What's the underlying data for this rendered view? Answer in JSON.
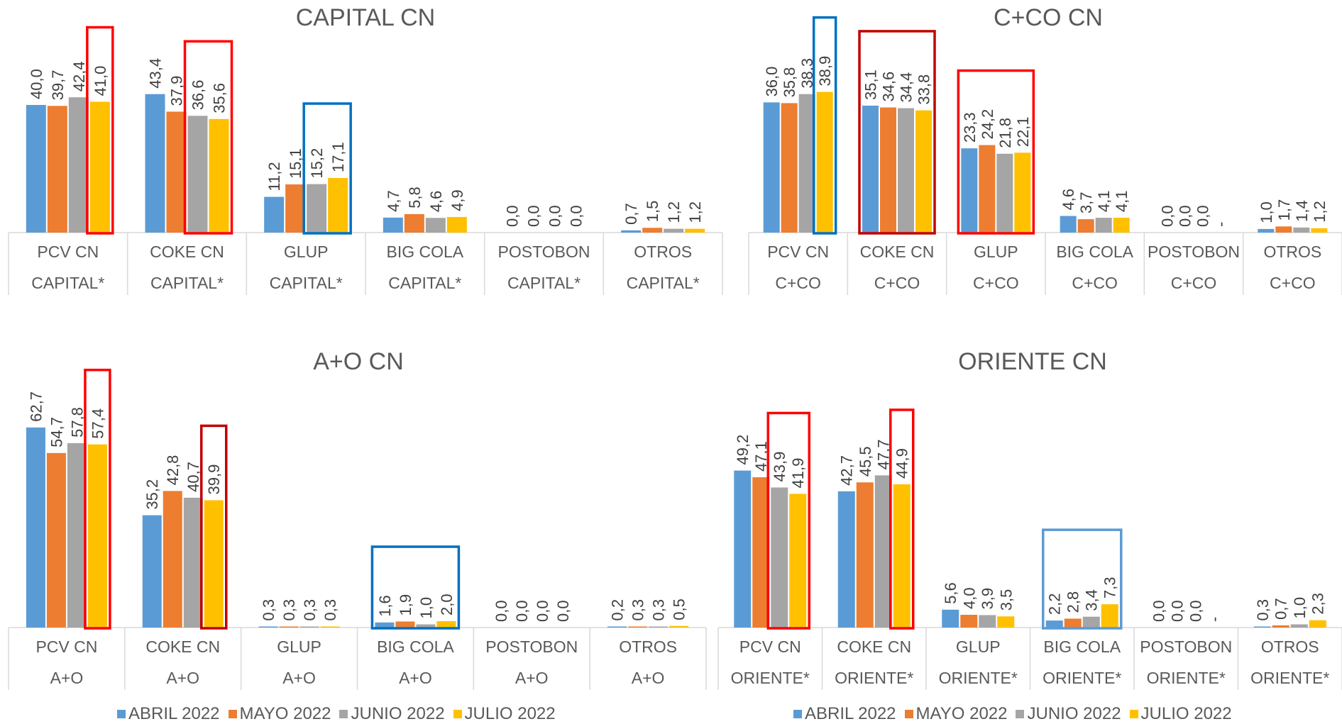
{
  "series_names": [
    "ABRIL 2022",
    "MAYO 2022",
    "JUNIO 2022",
    "JULIO 2022"
  ],
  "series_colors": [
    "#5B9BD5",
    "#ED7D31",
    "#A5A5A5",
    "#FFC000"
  ],
  "highlight_colors": {
    "red": "#FF0000",
    "dark-red": "#C00000",
    "blue": "#0070C0",
    "light-blue": "#5B9BD5"
  },
  "chart_data": [
    {
      "type": "bar",
      "title": "CAPITAL CN",
      "categories": [
        "PCV CN",
        "COKE CN",
        "GLUP",
        "BIG COLA",
        "POSTOBON",
        "OTROS"
      ],
      "subcategories": [
        "CAPITAL*",
        "CAPITAL*",
        "CAPITAL*",
        "CAPITAL*",
        "CAPITAL*",
        "CAPITAL*"
      ],
      "series": [
        {
          "name": "ABRIL 2022",
          "values": [
            40.0,
            43.4,
            11.2,
            4.7,
            0.0,
            0.7
          ],
          "labels": [
            "40,0",
            "43,4",
            "11,2",
            "4,7",
            "0,0",
            "0,7"
          ]
        },
        {
          "name": "MAYO 2022",
          "values": [
            39.7,
            37.9,
            15.1,
            5.8,
            0.0,
            1.5
          ],
          "labels": [
            "39,7",
            "37,9",
            "15,1",
            "5,8",
            "0,0",
            "1,5"
          ]
        },
        {
          "name": "JUNIO 2022",
          "values": [
            42.4,
            36.6,
            15.2,
            4.6,
            0.0,
            1.2
          ],
          "labels": [
            "42,4",
            "36,6",
            "15,2",
            "4,6",
            "0,0",
            "1,2"
          ]
        },
        {
          "name": "JULIO 2022",
          "values": [
            41.0,
            35.6,
            17.1,
            4.9,
            0.0,
            1.2
          ],
          "labels": [
            "41,0",
            "35,6",
            "17,1",
            "4,9",
            "0,0",
            "1,2"
          ]
        }
      ],
      "highlights": [
        {
          "from": 0,
          "to": 0,
          "series_from": 3,
          "series_to": 3,
          "color": "red"
        },
        {
          "from": 1,
          "to": 1,
          "series_from": 2,
          "series_to": 3,
          "color": "red"
        },
        {
          "from": 2,
          "to": 2,
          "series_from": 2,
          "series_to": 3,
          "color": "blue"
        }
      ]
    },
    {
      "type": "bar",
      "title": "C+CO CN",
      "categories": [
        "PCV CN",
        "COKE CN",
        "GLUP",
        "BIG COLA",
        "POSTOBON",
        "OTROS"
      ],
      "subcategories": [
        "C+CO",
        "C+CO",
        "C+CO",
        "C+CO",
        "C+CO",
        "C+CO"
      ],
      "series": [
        {
          "name": "ABRIL 2022",
          "values": [
            36.0,
            35.1,
            23.3,
            4.6,
            0.0,
            1.0
          ],
          "labels": [
            "36,0",
            "35,1",
            "23,3",
            "4,6",
            "0,0",
            "1,0"
          ]
        },
        {
          "name": "MAYO 2022",
          "values": [
            35.8,
            34.6,
            24.2,
            3.7,
            0.0,
            1.7
          ],
          "labels": [
            "35,8",
            "34,6",
            "24,2",
            "3,7",
            "0,0",
            "1,7"
          ]
        },
        {
          "name": "JUNIO 2022",
          "values": [
            38.3,
            34.4,
            21.8,
            4.1,
            0.0,
            1.4
          ],
          "labels": [
            "38,3",
            "34,4",
            "21,8",
            "4,1",
            "0,0",
            "1,4"
          ]
        },
        {
          "name": "JULIO 2022",
          "values": [
            38.9,
            33.8,
            22.1,
            4.1,
            0.0,
            1.2
          ],
          "labels": [
            "38,9",
            "33,8",
            "22,1",
            "4,1",
            "-",
            "1,2"
          ]
        }
      ],
      "highlights": [
        {
          "from": 0,
          "to": 0,
          "series_from": 3,
          "series_to": 3,
          "color": "blue"
        },
        {
          "from": 1,
          "to": 1,
          "series_from": 0,
          "series_to": 3,
          "color": "dark-red"
        },
        {
          "from": 2,
          "to": 2,
          "series_from": 0,
          "series_to": 3,
          "color": "red"
        }
      ]
    },
    {
      "type": "bar",
      "title": "A+O CN",
      "categories": [
        "PCV CN",
        "COKE CN",
        "GLUP",
        "BIG COLA",
        "POSTOBON",
        "OTROS"
      ],
      "subcategories": [
        "A+O",
        "A+O",
        "A+O",
        "A+O",
        "A+O",
        "A+O"
      ],
      "series": [
        {
          "name": "ABRIL 2022",
          "values": [
            62.7,
            35.2,
            0.3,
            1.6,
            0.0,
            0.2
          ],
          "labels": [
            "62,7",
            "35,2",
            "0,3",
            "1,6",
            "0,0",
            "0,2"
          ]
        },
        {
          "name": "MAYO 2022",
          "values": [
            54.7,
            42.8,
            0.3,
            1.9,
            0.0,
            0.3
          ],
          "labels": [
            "54,7",
            "42,8",
            "0,3",
            "1,9",
            "0,0",
            "0,3"
          ]
        },
        {
          "name": "JUNIO 2022",
          "values": [
            57.8,
            40.7,
            0.3,
            1.0,
            0.0,
            0.3
          ],
          "labels": [
            "57,8",
            "40,7",
            "0,3",
            "1,0",
            "0,0",
            "0,3"
          ]
        },
        {
          "name": "JULIO 2022",
          "values": [
            57.4,
            39.9,
            0.3,
            2.0,
            0.0,
            0.5
          ],
          "labels": [
            "57,4",
            "39,9",
            "0,3",
            "2,0",
            "0,0",
            "0,5"
          ]
        }
      ],
      "highlights": [
        {
          "from": 0,
          "to": 0,
          "series_from": 3,
          "series_to": 3,
          "color": "red"
        },
        {
          "from": 1,
          "to": 1,
          "series_from": 3,
          "series_to": 3,
          "color": "dark-red"
        },
        {
          "from": 3,
          "to": 3,
          "series_from": 0,
          "series_to": 3,
          "color": "blue"
        }
      ]
    },
    {
      "type": "bar",
      "title": "ORIENTE CN",
      "categories": [
        "PCV CN",
        "COKE CN",
        "GLUP",
        "BIG COLA",
        "POSTOBON",
        "OTROS"
      ],
      "subcategories": [
        "ORIENTE*",
        "ORIENTE*",
        "ORIENTE*",
        "ORIENTE*",
        "ORIENTE*",
        "ORIENTE*"
      ],
      "series": [
        {
          "name": "ABRIL 2022",
          "values": [
            49.2,
            42.7,
            5.6,
            2.2,
            0.0,
            0.3
          ],
          "labels": [
            "49,2",
            "42,7",
            "5,6",
            "2,2",
            "0,0",
            "0,3"
          ]
        },
        {
          "name": "MAYO 2022",
          "values": [
            47.1,
            45.5,
            4.0,
            2.8,
            0.0,
            0.7
          ],
          "labels": [
            "47,1",
            "45,5",
            "4,0",
            "2,8",
            "0,0",
            "0,7"
          ]
        },
        {
          "name": "JUNIO 2022",
          "values": [
            43.9,
            47.7,
            3.9,
            3.4,
            0.0,
            1.0
          ],
          "labels": [
            "43,9",
            "47,7",
            "3,9",
            "3,4",
            "0,0",
            "1,0"
          ]
        },
        {
          "name": "JULIO 2022",
          "values": [
            41.9,
            44.9,
            3.5,
            7.3,
            0.0,
            2.3
          ],
          "labels": [
            "41,9",
            "44,9",
            "3,5",
            "7,3",
            "-",
            "2,3"
          ]
        }
      ],
      "highlights": [
        {
          "from": 0,
          "to": 0,
          "series_from": 2,
          "series_to": 3,
          "color": "red"
        },
        {
          "from": 1,
          "to": 1,
          "series_from": 3,
          "series_to": 3,
          "color": "red"
        },
        {
          "from": 3,
          "to": 3,
          "series_from": 0,
          "series_to": 3,
          "color": "light-blue"
        }
      ]
    }
  ]
}
